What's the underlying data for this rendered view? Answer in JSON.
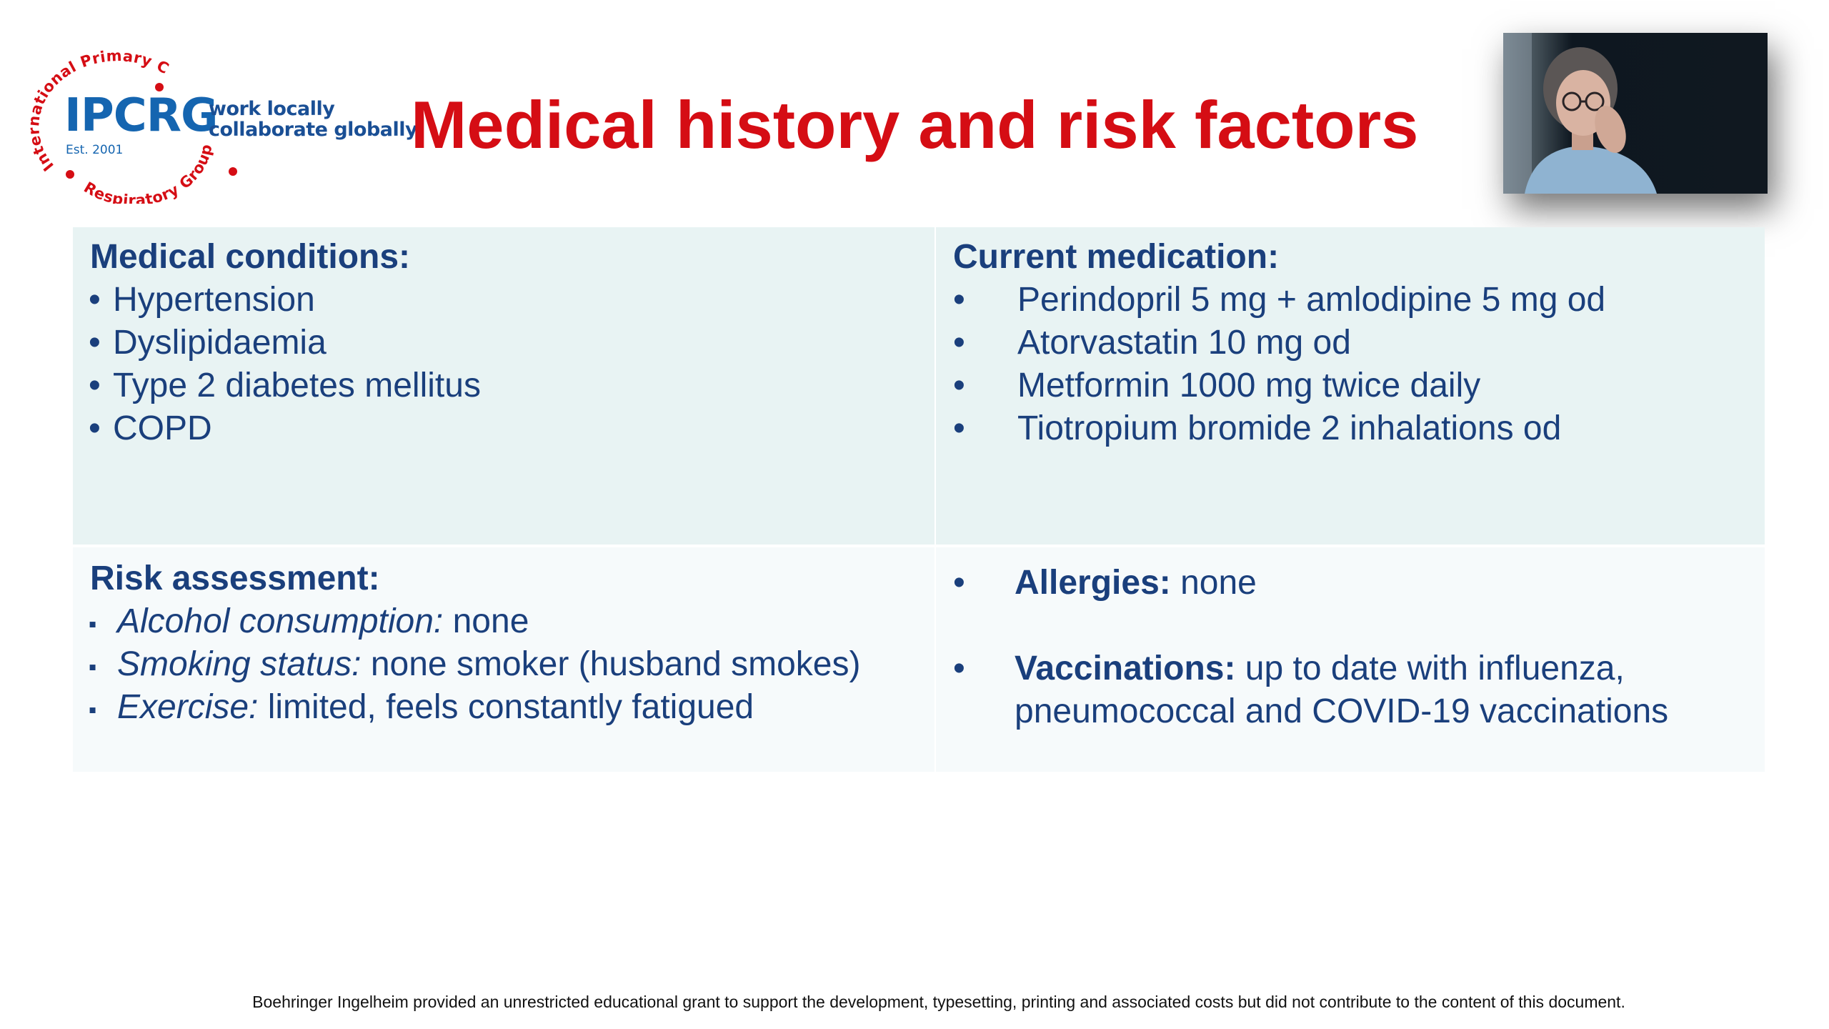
{
  "logo": {
    "ring_top": "International Primary Care",
    "ring_bottom": "Respiratory Group",
    "name": "IPCRG",
    "established": "Est. 2001",
    "tagline_line1": "work locally",
    "tagline_line2": "collaborate globally",
    "accent_color": "#d50d14",
    "brand_color": "#1565b0"
  },
  "title": "Medical history and risk factors",
  "photo": {
    "icon": "elderly-woman-portrait"
  },
  "medical_conditions": {
    "heading": "Medical conditions:",
    "bullet": "•",
    "items": [
      "Hypertension",
      "Dyslipidaemia",
      "Type 2 diabetes mellitus",
      "COPD"
    ]
  },
  "current_medication": {
    "heading": "Current medication:",
    "bullet": "•",
    "items": [
      "Perindopril 5 mg + amlodipine 5 mg od",
      "Atorvastatin 10 mg od",
      "Metformin 1000 mg twice daily",
      "Tiotropium bromide 2 inhalations od"
    ]
  },
  "risk_assessment": {
    "heading": "Risk assessment:",
    "bullet": "▪",
    "items": [
      {
        "label": "Alcohol consumption:",
        "value": " none"
      },
      {
        "label": "Smoking status:",
        "value": " none smoker (husband smokes)"
      },
      {
        "label": "Exercise:",
        "value": " limited, feels constantly fatigued"
      }
    ]
  },
  "other": {
    "bullet": "•",
    "allergies": {
      "label": "Allergies:",
      "value": " none"
    },
    "vaccinations": {
      "label": "Vaccinations:",
      "value_line1": " up to date with influenza,",
      "value_line2": "pneumococcal and COVID-19 vaccinations"
    }
  },
  "footer": "Boehringer Ingelheim provided an unrestricted educational grant to support the development, typesetting, printing and associated costs but did not contribute to the content of this document.",
  "colors": {
    "title_red": "#d50d14",
    "text_navy": "#1a3f7c",
    "panel_top": "#e8f3f3",
    "panel_bottom": "#f6fafb"
  }
}
